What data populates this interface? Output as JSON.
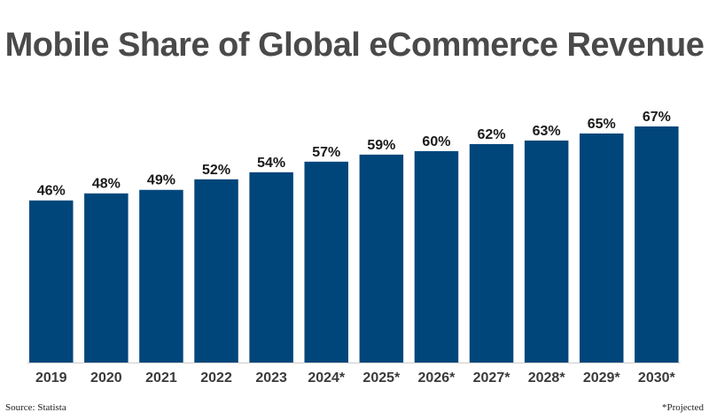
{
  "chart_data": {
    "type": "bar",
    "title": "Mobile Share of Global eCommerce Revenue",
    "categories": [
      "2019",
      "2020",
      "2021",
      "2022",
      "2023",
      "2024*",
      "2025*",
      "2026*",
      "2027*",
      "2028*",
      "2029*",
      "2030*"
    ],
    "values": [
      46,
      48,
      49,
      52,
      54,
      57,
      59,
      60,
      62,
      63,
      65,
      67
    ],
    "value_labels": [
      "46%",
      "48%",
      "49%",
      "52%",
      "54%",
      "57%",
      "59%",
      "60%",
      "62%",
      "63%",
      "65%",
      "67%"
    ],
    "ylim": [
      0,
      67
    ],
    "bar_color": "#00467a",
    "grid": false,
    "legend": "none"
  },
  "footer": {
    "source": "Source: Statista",
    "note": "*Projected"
  }
}
